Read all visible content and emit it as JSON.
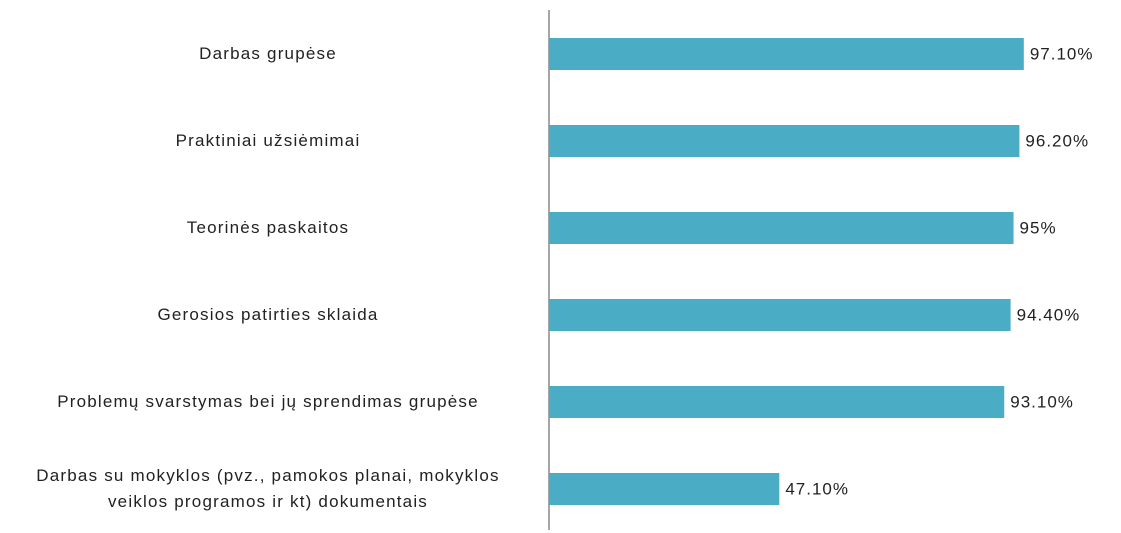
{
  "chart_data": {
    "type": "hbar",
    "categories": [
      "Darbas grupėse",
      "Praktiniai užsiėmimai",
      "Teorinės paskaitos",
      "Gerosios patirties sklaida",
      "Problemų svarstymas bei jų sprendimas grupėse",
      "Darbas su mokyklos (pvz., pamokos planai, mokyklos veiklos programos ir kt) dokumentais"
    ],
    "values": [
      97.1,
      96.2,
      95,
      94.4,
      93.1,
      47.1
    ],
    "value_labels": [
      "97.10%",
      "96.20%",
      "95%",
      "94.40%",
      "93.10%",
      "47.10%"
    ],
    "color": "#4bacc6",
    "xlim": [
      0,
      100
    ]
  }
}
